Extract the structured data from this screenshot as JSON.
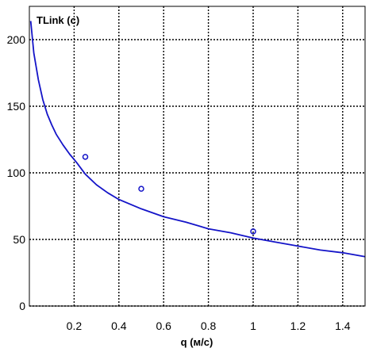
{
  "chart_data": {
    "type": "line",
    "title": "TLink (c)",
    "xlabel": "q (м/с)",
    "ylabel": "",
    "xlim": [
      0,
      1.5
    ],
    "ylim": [
      0,
      225
    ],
    "grid": true,
    "legend": "none",
    "x_ticks": [
      {
        "value": 0.2,
        "label": "0.2"
      },
      {
        "value": 0.4,
        "label": "0.4"
      },
      {
        "value": 0.6,
        "label": "0.6"
      },
      {
        "value": 0.8,
        "label": "0.8"
      },
      {
        "value": 1.0,
        "label": "1"
      },
      {
        "value": 1.2,
        "label": "1.2"
      },
      {
        "value": 1.4,
        "label": "1.4"
      }
    ],
    "y_ticks": [
      {
        "value": 0,
        "label": "0"
      },
      {
        "value": 50,
        "label": "50"
      },
      {
        "value": 100,
        "label": "100"
      },
      {
        "value": 150,
        "label": "150"
      },
      {
        "value": 200,
        "label": "200"
      }
    ],
    "series": [
      {
        "kind": "line",
        "color": "#1414c8",
        "x": [
          0.006,
          0.02,
          0.04,
          0.06,
          0.08,
          0.1,
          0.12,
          0.15,
          0.18,
          0.21,
          0.25,
          0.3,
          0.35,
          0.4,
          0.5,
          0.6,
          0.7,
          0.8,
          0.9,
          1.0,
          1.1,
          1.2,
          1.3,
          1.4,
          1.5
        ],
        "y": [
          214,
          190,
          170,
          155,
          144,
          136,
          129,
          121,
          114,
          108,
          99,
          91,
          85,
          80,
          73,
          67,
          63,
          58,
          55,
          51,
          48,
          45,
          42,
          40,
          37
        ]
      },
      {
        "kind": "scatter",
        "color": "#1414c8",
        "x": [
          0.25,
          0.5,
          1.0
        ],
        "y": [
          112,
          88,
          56
        ]
      }
    ]
  }
}
